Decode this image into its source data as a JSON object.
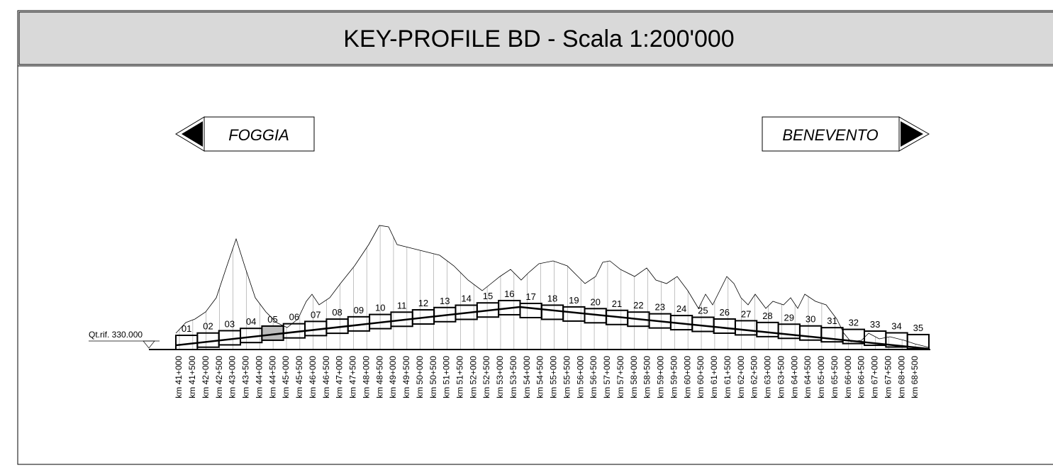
{
  "header": {
    "title": "KEY-PROFILE BD - Scala 1:200'000"
  },
  "directions": {
    "left": "FOGGIA",
    "right": "BENEVENTO"
  },
  "reference": "Qt.rif. 330.000",
  "segments": [
    "01",
    "02",
    "03",
    "04",
    "05",
    "06",
    "07",
    "08",
    "09",
    "10",
    "11",
    "12",
    "13",
    "14",
    "15",
    "16",
    "17",
    "18",
    "19",
    "20",
    "21",
    "22",
    "23",
    "24",
    "25",
    "26",
    "27",
    "28",
    "29",
    "30",
    "31",
    "32",
    "33",
    "34",
    "35"
  ],
  "chainages": [
    "km 41+000",
    "km 41+500",
    "km 42+000",
    "km 42+500",
    "km 43+000",
    "km 43+500",
    "km 44+000",
    "km 44+500",
    "km 45+000",
    "km 45+500",
    "km 46+000",
    "km 46+500",
    "km 47+000",
    "km 47+500",
    "km 48+000",
    "km 48+500",
    "km 49+000",
    "km 49+500",
    "km 50+000",
    "km 50+500",
    "km 51+000",
    "km 51+500",
    "km 52+000",
    "km 52+500",
    "km 53+000",
    "km 53+500",
    "km 54+000",
    "km 54+500",
    "km 55+000",
    "km 55+500",
    "km 56+000",
    "km 56+500",
    "km 57+000",
    "km 57+500",
    "km 58+000",
    "km 58+500",
    "km 59+000",
    "km 59+500",
    "km 60+000",
    "km 60+500",
    "km 61+000",
    "km 61+500",
    "km 62+000",
    "km 62+500",
    "km 63+000",
    "km 63+500",
    "km 64+000",
    "km 64+500",
    "km 65+000",
    "km 65+500",
    "km 66+000",
    "km 66+500",
    "km 67+000",
    "km 67+500",
    "km 68+000",
    "km 68+500"
  ]
}
